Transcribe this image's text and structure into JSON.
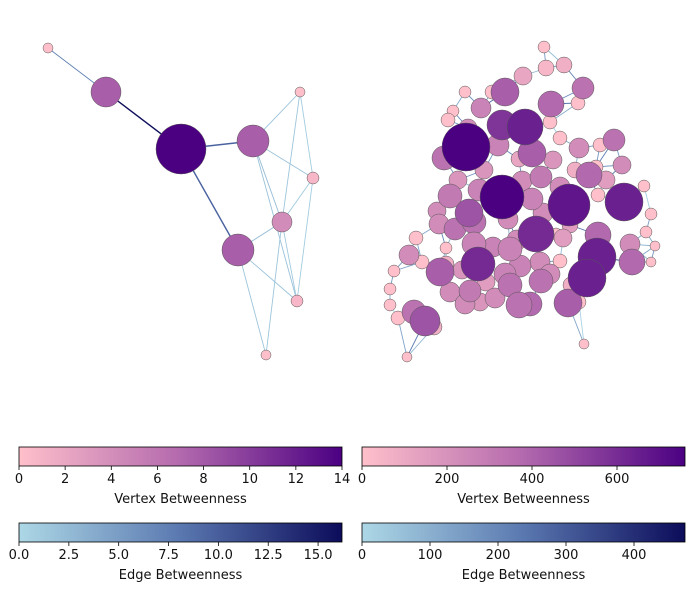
{
  "colors": {
    "vertex_low": "#ffc0cb",
    "vertex_mid": "#b369ad",
    "vertex_high": "#4b0082",
    "edge_low": "#add8e6",
    "edge_mid": "#5a78b0",
    "edge_high": "#0c0c5a",
    "node_stroke": "#555555"
  },
  "panels": [
    {
      "name": "small-graph",
      "vertex_colorbar": {
        "label": "Vertex Betweenness",
        "ticks": [
          "0",
          "2",
          "4",
          "6",
          "8",
          "10",
          "12",
          "14"
        ],
        "min": 0,
        "max": 14
      },
      "edge_colorbar": {
        "label": "Edge Betweenness",
        "ticks": [
          "0.0",
          "2.5",
          "5.0",
          "7.5",
          "10.0",
          "12.5",
          "15.0"
        ],
        "min": 0,
        "max": 16.2
      }
    },
    {
      "name": "large-graph",
      "vertex_colorbar": {
        "label": "Vertex Betweenness",
        "ticks": [
          "0",
          "200",
          "400",
          "600"
        ],
        "min": 0,
        "max": 760
      },
      "edge_colorbar": {
        "label": "Edge Betweenness",
        "ticks": [
          "0",
          "100",
          "200",
          "300",
          "400"
        ],
        "min": 0,
        "max": 475
      }
    }
  ]
}
